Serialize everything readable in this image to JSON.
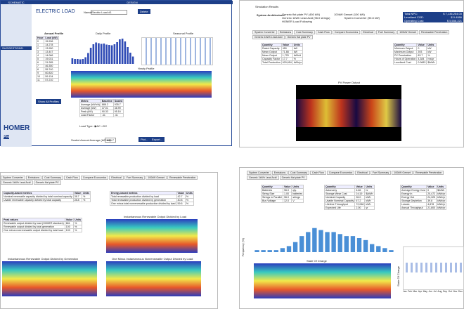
{
  "load_panel": {
    "schematic": "SCHEMATIC",
    "design": "DESIGN",
    "suggestions": "SUGGESTIONS:",
    "title": "ELECTRIC LOAD",
    "name_label": "Name:",
    "name_value": "Electric Load #1",
    "delete": "Delete",
    "annual": "Annual Profile",
    "daily_title": "Daily Profile",
    "seasonal_title": "Seasonal Profile",
    "yearly_title": "Yearly Profile",
    "show_all": "Show All Profiles",
    "logo": "HOMER",
    "logo_sub": "Pro",
    "hour_table": {
      "headers": [
        "Hour",
        "Load (kW)"
      ],
      "rows": [
        [
          "0",
          "15.936"
        ],
        [
          "1",
          "14.278"
        ],
        [
          "2",
          "13.950"
        ],
        [
          "3",
          "13.447"
        ],
        [
          "4",
          "14.066"
        ],
        [
          "5",
          "19.031"
        ],
        [
          "6",
          "31.285"
        ],
        [
          "7",
          "46.350"
        ],
        [
          "8",
          "55.740"
        ],
        [
          "9",
          "60.820"
        ],
        [
          "10",
          "59.134"
        ],
        [
          "11",
          "57.210"
        ]
      ]
    },
    "metrics": {
      "headers": [
        "Metric",
        "Baseline",
        "Scaled"
      ],
      "rows": [
        [
          "Average (kWh/d)",
          "888.2",
          "935.7"
        ],
        [
          "Average (kW)",
          "37.01",
          "38.99"
        ],
        [
          "Peak (kW)",
          "90.33",
          "95.16"
        ],
        [
          "Load Factor",
          ".41",
          ".41"
        ]
      ]
    },
    "daily": {
      "values": [
        16,
        14,
        14,
        13,
        14,
        19,
        31,
        46,
        56,
        61,
        59,
        57,
        58,
        55,
        54,
        53,
        56,
        62,
        70,
        72,
        64,
        48,
        32,
        21
      ],
      "ylim": [
        0,
        80
      ],
      "color": "#2f4bb5"
    },
    "load_type": "Load Type:",
    "ac": "AC",
    "dc": "DC",
    "scaled_label": "Scaled Annual Average (kWh/d):",
    "scaled_value": "935.7",
    "plot": "Plot...",
    "export": "Export..."
  },
  "results_panel": {
    "title": "Simulation Results",
    "arch_label": "System Architecture:",
    "arch": [
      "Generic flat plate PV (450 kW)",
      "100kW Genset (100 kW)",
      "Generic 1kWh Lead Acid (96.0 strings)",
      "System Converter (90.8 kW)",
      "HOMER Load Following"
    ],
    "costs": {
      "rows": [
        [
          "Total NPC:",
          "$ 7,136,254.00"
        ],
        [
          "Levelized COE:",
          "$ 0.4086"
        ],
        [
          "Operating Cost:",
          "$ 5,656,221"
        ]
      ]
    },
    "tabs": [
      "System Converter",
      "Emissions",
      "Cost Summary",
      "Cash Flow",
      "Compare Economics",
      "Electrical",
      "Fuel Summary",
      "100kW Genset",
      "Renewable Penetration",
      "Generic 1kWh Lead Acid",
      "Generic flat plate PV"
    ],
    "left_table": {
      "headers": [
        "Quantity",
        "Value",
        "Units"
      ],
      "rows": [
        [
          "Rated Capacity",
          "450",
          "kW"
        ],
        [
          "Mean Output",
          "71.88",
          "kW"
        ],
        [
          "Mean Output",
          "1,725",
          "kWh/d"
        ],
        [
          "Capacity Factor",
          "17.7",
          "%"
        ],
        [
          "Total Production",
          "629,654",
          "kWh/yr"
        ]
      ]
    },
    "right_table": {
      "headers": [
        "Quantity",
        "Value",
        "Units"
      ],
      "rows": [
        [
          "Minimum Output",
          "0",
          "kW"
        ],
        [
          "Maximum Output",
          "393",
          "kW"
        ],
        [
          "PV Penetration",
          "83.7",
          "%"
        ],
        [
          "Hours of Operation",
          "4,384",
          "hrs/yr"
        ],
        [
          "Levelized Cost",
          "0.0683",
          "$/kWh"
        ]
      ]
    },
    "chart_title": "PV Power Output"
  },
  "renew_panel": {
    "tabs": [
      "System Converter",
      "Emissions",
      "Cost Summary",
      "Cash Flow",
      "Compare Economics",
      "Electrical",
      "Fuel Summary",
      "100kW Genset",
      "Renewable Penetration",
      "Generic 1kWh Lead Acid",
      "Generic flat plate PV"
    ],
    "capacity": {
      "headers": [
        "Capacity-based metrics",
        "Value",
        "Units"
      ],
      "rows": [
        [
          "Nominal renewable capacity divided by total nominal capacity",
          "28.7",
          "%"
        ],
        [
          "Usable renewable capacity divided by total capacity",
          "28.8",
          "%"
        ]
      ]
    },
    "energy": {
      "headers": [
        "Energy-based metrics",
        "Value",
        "Units"
      ],
      "rows": [
        [
          "Total renewable production divided by load",
          "42.7",
          "%"
        ],
        [
          "Total renewable production divided by generation",
          "40.8",
          "%"
        ],
        [
          "One minus total nonrenewable production divided by load",
          "59.6",
          "%"
        ]
      ]
    },
    "peak": {
      "headers": [
        "Peak values",
        "Value",
        "Units"
      ],
      "rows": [
        [
          "Renewable output divided by load (HOMER standard)",
          "661",
          "%"
        ],
        [
          "Renewable output divided by total generation",
          "100",
          "%"
        ],
        [
          "One minus nonrenewable output divided by total load",
          "100",
          "%"
        ]
      ]
    },
    "chart1": "Instantaneous Renewable Output Divided by Load",
    "chart2": "Instantaneous Renewable Output Divided by Generation",
    "chart3": "One Minus Instantaneous Nonrenewable Output Divided by Load"
  },
  "battery_panel": {
    "tabs": [
      "System Converter",
      "Emissions",
      "Cost Summary",
      "Cash Flow",
      "Compare Economics",
      "Electrical",
      "Fuel Summary",
      "100kW Genset",
      "Renewable Penetration",
      "Generic 1kWh Lead Acid",
      "Generic flat plate PV"
    ],
    "t1": {
      "headers": [
        "Quantity",
        "Value",
        "Units"
      ],
      "rows": [
        [
          "Batteries",
          "96.0",
          "qty."
        ],
        [
          "String Size",
          "1.00",
          "batteries"
        ],
        [
          "Strings in Parallel",
          "96.0",
          "strings"
        ],
        [
          "Bus Voltage",
          "12.0",
          "V"
        ]
      ]
    },
    "t2": {
      "headers": [
        "Quantity",
        "Value",
        "Units"
      ],
      "rows": [
        [
          "Autonomy",
          "6.66",
          "hr"
        ],
        [
          "Storage Wear Cost",
          "0.419",
          "$/kWh"
        ],
        [
          "Nominal Capacity",
          "96.0",
          "kWh"
        ],
        [
          "Usable Nominal Capacity",
          "67.2",
          "kWh"
        ],
        [
          "Lifetime Throughput",
          "72,068",
          "kWh"
        ],
        [
          "Expected Life",
          "2.00",
          "yr"
        ]
      ]
    },
    "t3": {
      "headers": [
        "Quantity",
        "Value",
        "Units"
      ],
      "rows": [
        [
          "Average Energy Cost",
          "0",
          "$/kWh"
        ],
        [
          "Energy In",
          "20,472",
          "kWh/yr"
        ],
        [
          "Energy Out",
          "24,325",
          "kWh/yr"
        ],
        [
          "Storage Depletion",
          "39.8",
          "kWh/yr"
        ],
        [
          "Losses",
          "4,878",
          "kWh/yr"
        ],
        [
          "Annual Throughput",
          "21,800",
          "kWh/yr"
        ]
      ]
    },
    "hist": {
      "values": [
        1,
        1,
        1,
        1,
        2,
        3,
        5,
        8,
        10,
        12,
        11,
        10,
        10,
        9,
        8,
        8,
        7,
        6,
        4,
        3,
        2,
        1
      ],
      "ylim": [
        0,
        14
      ],
      "color": "#4a8fd6"
    },
    "freq_label": "Frequency (%)",
    "soc_title": "State Of Charge",
    "soc_axis": "State Of Charge",
    "months": [
      "Jan",
      "Feb",
      "Mar",
      "Apr",
      "May",
      "Jun",
      "Jul",
      "Aug",
      "Sep",
      "Oct",
      "Nov",
      "Dec"
    ]
  }
}
